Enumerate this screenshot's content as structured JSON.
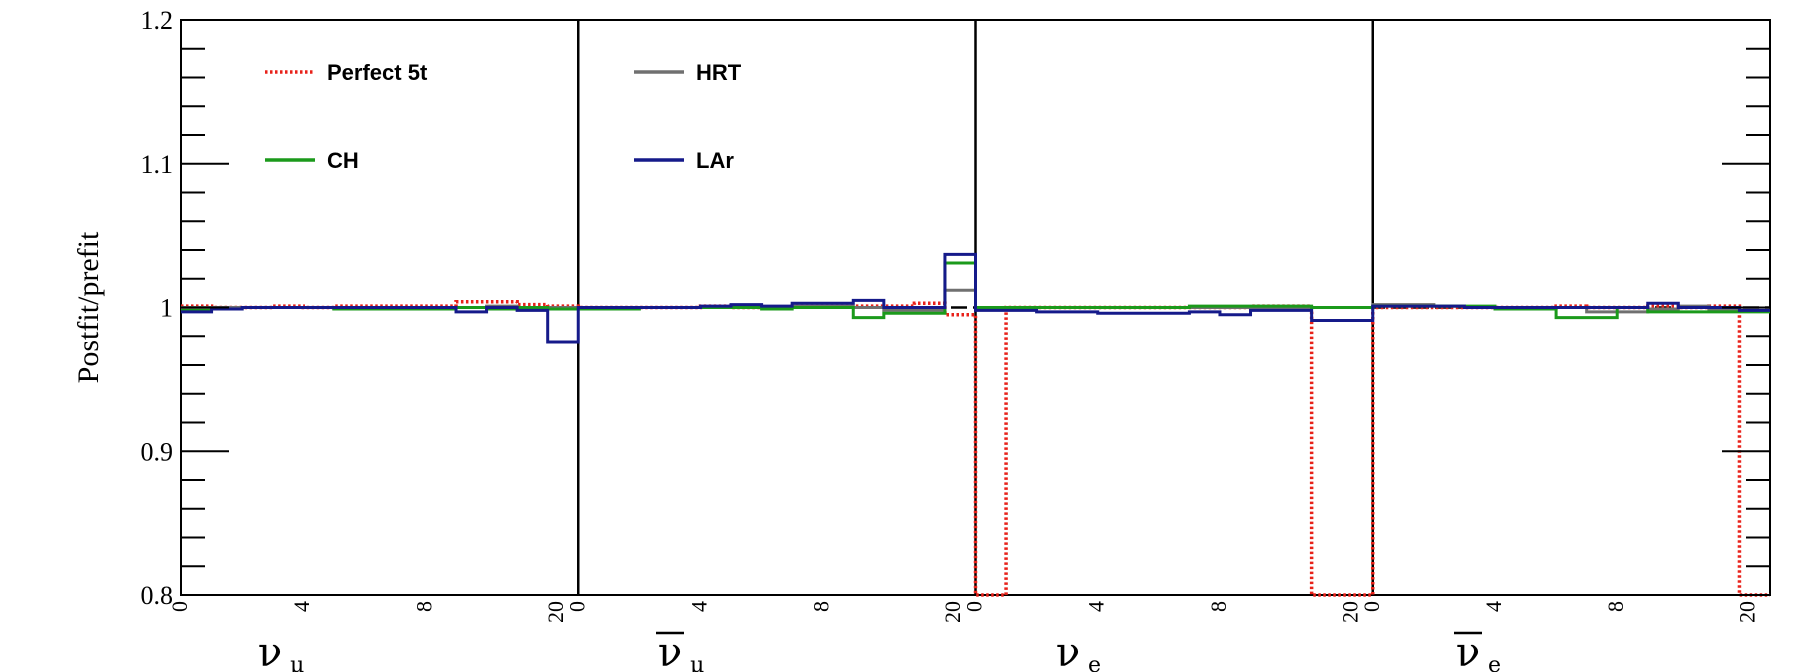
{
  "chart_data": {
    "type": "line",
    "ylabel": "Postfit/prefit",
    "ylim": [
      0.8,
      1.2
    ],
    "yticks": [
      "0.8",
      "0.9",
      "1",
      "1.1",
      "1.2"
    ],
    "xlim": [
      0,
      52
    ],
    "reference_line": 1.0,
    "section_dividers": [
      13,
      26,
      39
    ],
    "sections": [
      {
        "name": "ν",
        "sub": "μ",
        "bar": false,
        "start": 0
      },
      {
        "name": "ν",
        "sub": "μ",
        "bar": true,
        "start": 13
      },
      {
        "name": "ν",
        "sub": "e",
        "bar": false,
        "start": 26
      },
      {
        "name": "ν",
        "sub": "e",
        "bar": true,
        "start": 39
      }
    ],
    "xtick_labels": [
      "0",
      "4",
      "8",
      "20"
    ],
    "legend": [
      "Perfect 5t",
      "HRT",
      "CH",
      "LAr"
    ],
    "series": [
      {
        "name": "Perfect 5t",
        "color": "#e8221a",
        "style": "dotted",
        "values": [
          1.001,
          1.0,
          1.0,
          1.001,
          1.0,
          1.001,
          1.001,
          1.001,
          1.001,
          1.004,
          1.004,
          1.002,
          1.001,
          1.0,
          1.0,
          1.0,
          1.0,
          1.001,
          1.0,
          1.0,
          1.001,
          1.001,
          1.001,
          1.001,
          1.003,
          0.995,
          0.8,
          1.0,
          1.0,
          1.0,
          1.0,
          1.0,
          1.0,
          1.0,
          1.0,
          1.001,
          1.001,
          0.8,
          0.8,
          1.0,
          1.0,
          1.0,
          1.0,
          1.0,
          1.0,
          1.001,
          1.0,
          1.0,
          1.001,
          1.0,
          1.001,
          0.8
        ]
      },
      {
        "name": "HRT",
        "color": "#707070",
        "style": "solid",
        "values": [
          1.0,
          1.0,
          1.0,
          1.0,
          1.0,
          1.0,
          1.0,
          1.0,
          1.0,
          1.0,
          1.001,
          1.0,
          1.0,
          1.0,
          1.0,
          1.0,
          1.0,
          1.0,
          1.001,
          1.0,
          1.001,
          1.001,
          1.0,
          0.998,
          0.998,
          1.012,
          1.0,
          1.0,
          1.0,
          1.0,
          1.0,
          1.0,
          1.0,
          1.0,
          1.0,
          1.0,
          1.0,
          1.0,
          1.0,
          1.002,
          1.002,
          1.001,
          1.0,
          1.0,
          1.0,
          1.0,
          0.997,
          0.997,
          0.999,
          1.001,
          0.998,
          0.998
        ]
      },
      {
        "name": "CH",
        "color": "#1b9a1b",
        "style": "solid",
        "values": [
          0.998,
          0.999,
          1.0,
          1.0,
          1.0,
          0.999,
          0.999,
          0.999,
          0.999,
          1.0,
          0.999,
          1.0,
          0.999,
          0.999,
          0.999,
          1.0,
          1.0,
          1.0,
          1.0,
          0.999,
          1.0,
          1.0,
          0.993,
          0.996,
          0.996,
          1.031,
          1.0,
          1.0,
          1.0,
          1.0,
          1.0,
          1.0,
          1.0,
          1.001,
          1.001,
          1.001,
          1.001,
          1.0,
          1.0,
          1.001,
          1.001,
          1.001,
          1.001,
          0.999,
          0.999,
          0.993,
          0.993,
          1.0,
          0.997,
          0.997,
          0.997,
          0.997
        ]
      },
      {
        "name": "LAr",
        "color": "#151a8a",
        "style": "solid",
        "values": [
          0.997,
          0.999,
          1.0,
          1.0,
          1.0,
          1.0,
          1.0,
          1.0,
          1.0,
          0.997,
          1.0,
          0.998,
          0.976,
          1.0,
          1.0,
          1.0,
          1.0,
          1.001,
          1.002,
          1.001,
          1.003,
          1.003,
          1.005,
          1.0,
          1.0,
          1.037,
          0.998,
          0.998,
          0.997,
          0.997,
          0.996,
          0.996,
          0.996,
          0.997,
          0.995,
          0.998,
          0.998,
          0.991,
          0.991,
          1.001,
          1.001,
          1.001,
          1.0,
          1.0,
          1.0,
          1.0,
          1.0,
          1.0,
          1.003,
          1.0,
          1.0,
          0.998
        ]
      }
    ]
  }
}
